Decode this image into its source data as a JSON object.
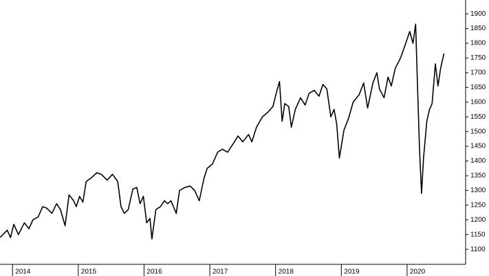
{
  "chart_data": {
    "type": "line",
    "x": [
      2013.81,
      2013.92,
      2013.97,
      2014.02,
      2014.09,
      2014.18,
      2014.25,
      2014.31,
      2014.39,
      2014.46,
      2014.52,
      2014.6,
      2014.67,
      2014.73,
      2014.8,
      2014.86,
      2014.93,
      2014.97,
      2015.02,
      2015.07,
      2015.12,
      2015.21,
      2015.28,
      2015.35,
      2015.44,
      2015.52,
      2015.6,
      2015.65,
      2015.7,
      2015.76,
      2015.83,
      2015.89,
      2015.94,
      2015.99,
      2016.04,
      2016.09,
      2016.12,
      2016.18,
      2016.25,
      2016.31,
      2016.36,
      2016.41,
      2016.49,
      2016.54,
      2016.62,
      2016.7,
      2016.77,
      2016.84,
      2016.91,
      2016.96,
      2017.04,
      2017.12,
      2017.19,
      2017.27,
      2017.36,
      2017.43,
      2017.5,
      2017.59,
      2017.64,
      2017.71,
      2017.8,
      2017.88,
      2017.96,
      2018.01,
      2018.06,
      2018.1,
      2018.14,
      2018.2,
      2018.24,
      2018.3,
      2018.38,
      2018.45,
      2018.51,
      2018.59,
      2018.66,
      2018.72,
      2018.78,
      2018.84,
      2018.89,
      2018.93,
      2018.97,
      2019.04,
      2019.11,
      2019.18,
      2019.27,
      2019.34,
      2019.4,
      2019.48,
      2019.54,
      2019.58,
      2019.65,
      2019.71,
      2019.76,
      2019.82,
      2019.9,
      2019.98,
      2020.04,
      2020.09,
      2020.13,
      2020.16,
      2020.19,
      2020.22,
      2020.25,
      2020.3,
      2020.34,
      2020.38,
      2020.43,
      2020.47,
      2020.51,
      2020.56
    ],
    "series": [
      {
        "color": "#000000",
        "values": [
          1140,
          1165,
          1140,
          1185,
          1150,
          1190,
          1170,
          1200,
          1210,
          1245,
          1240,
          1222,
          1255,
          1235,
          1180,
          1285,
          1265,
          1245,
          1280,
          1260,
          1330,
          1345,
          1360,
          1355,
          1335,
          1355,
          1330,
          1245,
          1222,
          1235,
          1305,
          1310,
          1255,
          1280,
          1190,
          1205,
          1135,
          1235,
          1245,
          1265,
          1255,
          1265,
          1222,
          1300,
          1310,
          1315,
          1300,
          1265,
          1340,
          1375,
          1390,
          1430,
          1440,
          1430,
          1460,
          1485,
          1465,
          1490,
          1465,
          1515,
          1550,
          1565,
          1585,
          1630,
          1670,
          1535,
          1595,
          1585,
          1515,
          1575,
          1615,
          1590,
          1630,
          1640,
          1620,
          1660,
          1645,
          1550,
          1575,
          1525,
          1410,
          1505,
          1545,
          1600,
          1625,
          1665,
          1580,
          1665,
          1700,
          1645,
          1615,
          1685,
          1655,
          1715,
          1750,
          1800,
          1840,
          1800,
          1865,
          1645,
          1435,
          1290,
          1410,
          1535,
          1575,
          1595,
          1730,
          1655,
          1715,
          1765
        ]
      }
    ],
    "xlim": [
      2013.81,
      2020.89
    ],
    "xticks": [
      2014,
      2015,
      2016,
      2017,
      2018,
      2019,
      2020
    ],
    "ylim": [
      1049,
      1947
    ],
    "yticks": [
      1100,
      1150,
      1200,
      1250,
      1300,
      1350,
      1400,
      1450,
      1500,
      1550,
      1600,
      1650,
      1700,
      1750,
      1800,
      1850,
      1900
    ]
  }
}
